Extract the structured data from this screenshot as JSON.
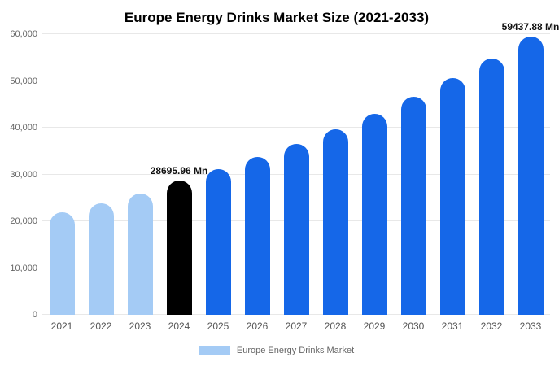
{
  "chart_data": {
    "type": "bar",
    "title": "Europe Energy Drinks Market Size (2021-2033)",
    "categories": [
      "2021",
      "2022",
      "2023",
      "2024",
      "2025",
      "2026",
      "2027",
      "2028",
      "2029",
      "2030",
      "2031",
      "2032",
      "2033"
    ],
    "values": [
      22000,
      23900,
      25900,
      28695.96,
      31114,
      33736,
      36579,
      39662,
      43004,
      46628,
      50558,
      54818,
      59437.88
    ],
    "ylim": [
      0,
      60000
    ],
    "yticks": {
      "values": [
        0,
        10000,
        20000,
        30000,
        40000,
        50000,
        60000
      ],
      "labels": [
        "0",
        "10,000",
        "20,000",
        "30,000",
        "40,000",
        "50,000",
        "60,000"
      ]
    },
    "grid": true,
    "xlabel": "",
    "ylabel": "",
    "bar_colors": [
      "#A4CBF5",
      "#A4CBF5",
      "#A4CBF5",
      "#000000",
      "#1567E8",
      "#1567E8",
      "#1567E8",
      "#1567E8",
      "#1567E8",
      "#1567E8",
      "#1567E8",
      "#1567E8",
      "#1567E8"
    ],
    "annotations": [
      {
        "index": 3,
        "text": "28695.96 Mn"
      },
      {
        "index": 12,
        "text": "59437.88 Mn"
      }
    ],
    "legend": {
      "label": "Europe Energy Drinks Market",
      "swatch_color": "#A4CBF5",
      "position": "bottom"
    }
  },
  "colors": {
    "background": "#FFFFFF",
    "grid": "#E8E8E8",
    "axis_text": "#666666",
    "annotation_text": "#111111",
    "title_text": "#000000",
    "historical_bar": "#A4CBF5",
    "highlight_bar": "#000000",
    "forecast_bar": "#1567E8"
  }
}
